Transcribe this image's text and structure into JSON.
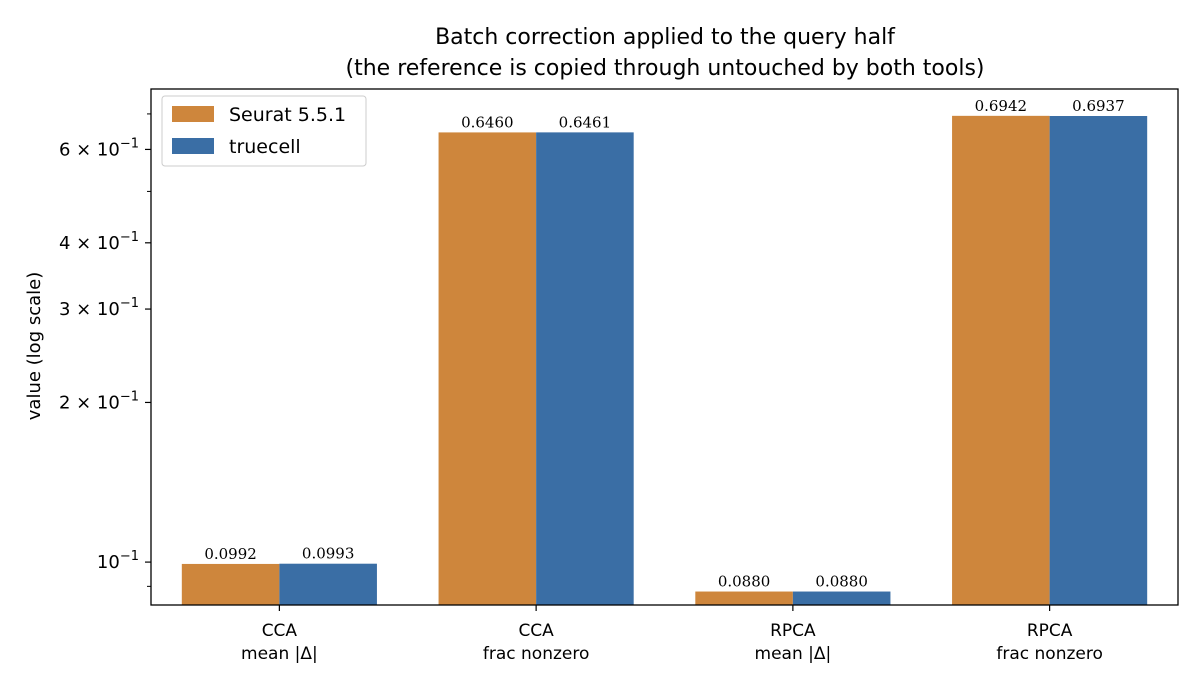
{
  "chart_data": {
    "type": "bar",
    "title": "Batch correction applied to the query half",
    "subtitle": "(the reference is copied through untouched by both tools)",
    "xlabel": "",
    "ylabel": "value (log scale)",
    "yscale": "log",
    "ylim": [
      0.083,
      0.78
    ],
    "yticks": [
      {
        "value": 0.1,
        "label": "10",
        "exp": "−1",
        "mantissa": ""
      },
      {
        "value": 0.2,
        "label": "2 × 10",
        "exp": "−1",
        "mantissa": "2"
      },
      {
        "value": 0.3,
        "label": "3 × 10",
        "exp": "−1",
        "mantissa": "3"
      },
      {
        "value": 0.4,
        "label": "4 × 10",
        "exp": "−1",
        "mantissa": "4"
      },
      {
        "value": 0.6,
        "label": "6 × 10",
        "exp": "−1",
        "mantissa": "6"
      }
    ],
    "categories": [
      [
        "CCA",
        "mean |Δ|"
      ],
      [
        "CCA",
        "frac nonzero"
      ],
      [
        "RPCA",
        "mean |Δ|"
      ],
      [
        "RPCA",
        "frac nonzero"
      ]
    ],
    "series": [
      {
        "name": "Seurat 5.5.1",
        "color": "#CE863C",
        "values": [
          0.0992,
          0.646,
          0.088,
          0.6942
        ],
        "labels": [
          "0.0992",
          "0.6460",
          "0.0880",
          "0.6942"
        ]
      },
      {
        "name": "truecell",
        "color": "#3A6EA5",
        "values": [
          0.0993,
          0.6461,
          0.088,
          0.6937
        ],
        "labels": [
          "0.0993",
          "0.6461",
          "0.0880",
          "0.6937"
        ]
      }
    ],
    "legend_position": "top-left",
    "grid": false
  }
}
